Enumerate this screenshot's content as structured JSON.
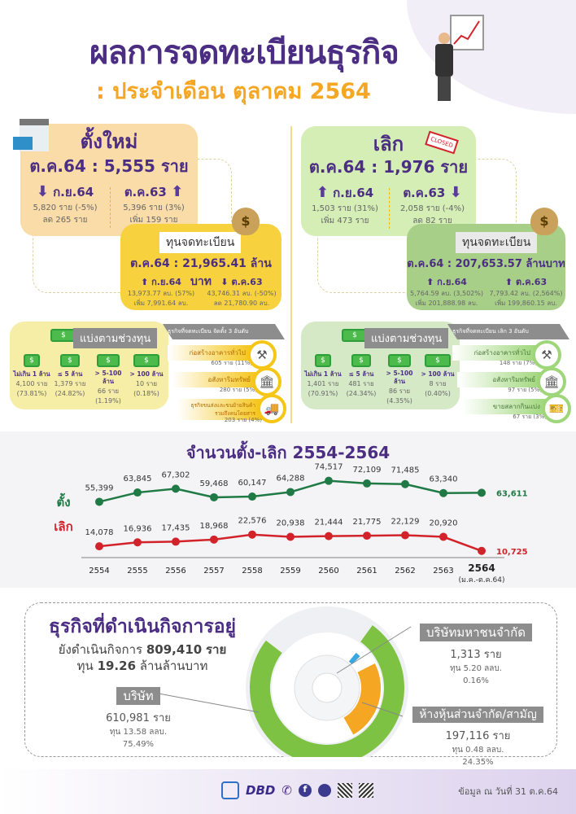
{
  "header": {
    "title": "ผลการจดทะเบียนธุรกิจ",
    "subtitle": ": ประจำเดือน ตุลาคม 2564"
  },
  "new": {
    "heading": "ตั้งใหม่",
    "main": "ต.ค.64 : 5,555 ราย",
    "prev_month": {
      "label": "ก.ย.64",
      "line1": "5,820 ราย (-5%)",
      "line2": "ลด 265 ราย",
      "direction": "down"
    },
    "prev_year": {
      "label": "ต.ค.63",
      "line1": "5,396 ราย (3%)",
      "line2": "เพิ่ม 159 ราย",
      "direction": "up"
    },
    "capital": {
      "tag": "ทุนจดทะเบียน",
      "main": "ต.ค.64 : 21,965.41 ล้านบาท",
      "prev_month": {
        "label": "ก.ย.64",
        "line1": "13,973.77 ลบ. (57%)",
        "line2": "เพิ่ม 7,991.64 ลบ.",
        "direction": "up"
      },
      "prev_year": {
        "label": "ต.ค.63",
        "line1": "43,746.31 ลบ. (-50%)",
        "line2": "ลด 21,780.90 ลบ.",
        "direction": "down"
      }
    },
    "ranges": {
      "heading": "แบ่งตามช่วงทุน",
      "items": [
        {
          "label": "ไม่เกิน 1 ล้าน",
          "count": "4,100 ราย",
          "pct": "(73.81%)"
        },
        {
          "label": "≤ 5 ล้าน",
          "count": "1,379 ราย",
          "pct": "(24.82%)"
        },
        {
          "label": "> 5-100 ล้าน",
          "count": "66 ราย",
          "pct": "(1.19%)"
        },
        {
          "label": "> 100 ล้าน",
          "count": "10 ราย",
          "pct": "(0.18%)"
        }
      ]
    },
    "top3": {
      "heading": "ธุรกิจที่จดทะเบียน จัดตั้ง 3 อันดับ",
      "items": [
        {
          "label": "ก่อสร้างอาคารทั่วไป",
          "value": "605 ราย (11%)",
          "icon": "construction-icon"
        },
        {
          "label": "อสังหาริมทรัพย์",
          "value": "280 ราย (5%)",
          "icon": "bank-icon"
        },
        {
          "label": "ธุรกิจขนส่งและขนย้ายสินค้ารวมถึงคนโดยสาร",
          "value": "203 ราย (4%)",
          "icon": "truck-icon"
        }
      ]
    }
  },
  "closed": {
    "heading": "เลิก",
    "main": "ต.ค.64 : 1,976 ราย",
    "prev_month": {
      "label": "ก.ย.64",
      "line1": "1,503 ราย (31%)",
      "line2": "เพิ่ม 473 ราย",
      "direction": "up"
    },
    "prev_year": {
      "label": "ต.ค.63",
      "line1": "2,058 ราย (-4%)",
      "line2": "ลด 82 ราย",
      "direction": "down"
    },
    "capital": {
      "tag": "ทุนจดทะเบียน",
      "main": "ต.ค.64 : 207,653.57 ล้านบาท",
      "prev_month": {
        "label": "ก.ย.64",
        "line1": "5,764.59 ลบ. (3,502%)",
        "line2": "เพิ่ม 201,888.98 ลบ.",
        "direction": "up"
      },
      "prev_year": {
        "label": "ต.ค.63",
        "line1": "7,793.42 ลบ. (2,564%)",
        "line2": "เพิ่ม 199,860.15 ลบ.",
        "direction": "up"
      }
    },
    "ranges": {
      "heading": "แบ่งตามช่วงทุน",
      "items": [
        {
          "label": "ไม่เกิน 1 ล้าน",
          "count": "1,401 ราย",
          "pct": "(70.91%)"
        },
        {
          "label": "≤ 5 ล้าน",
          "count": "481 ราย",
          "pct": "(24.34%)"
        },
        {
          "label": "> 5-100 ล้าน",
          "count": "86 ราย",
          "pct": "(4.35%)"
        },
        {
          "label": "> 100 ล้าน",
          "count": "8 ราย",
          "pct": "(0.40%)"
        }
      ]
    },
    "top3": {
      "heading": "ธุรกิจที่จดทะเบียน เลิก 3 อันดับ",
      "items": [
        {
          "label": "ก่อสร้างอาคารทั่วไป",
          "value": "148 ราย (7%)",
          "icon": "construction-icon"
        },
        {
          "label": "อสังหาริมทรัพย์",
          "value": "97 ราย (5%)",
          "icon": "bank-icon"
        },
        {
          "label": "ขายสลากกินแบ่ง",
          "value": "67 ราย (3%)",
          "icon": "lottery-icon"
        }
      ]
    }
  },
  "chart_data": {
    "type": "line",
    "title": "จำนวนตั้ง-เลิก 2554-2564",
    "categories": [
      "2554",
      "2555",
      "2556",
      "2557",
      "2558",
      "2559",
      "2560",
      "2561",
      "2562",
      "2563",
      "2564"
    ],
    "last_category_note": "(ม.ค.-ต.ค.64)",
    "series": [
      {
        "name": "ตั้ง",
        "color": "#1f7a45",
        "values": [
          55399,
          63845,
          67302,
          59468,
          60147,
          64288,
          74517,
          72109,
          71485,
          63340,
          63611
        ],
        "labels": [
          "55,399",
          "63,845",
          "67,302",
          "59,468",
          "60,147",
          "64,288",
          "74,517",
          "72,109",
          "71,485",
          "63,340",
          "63,611"
        ]
      },
      {
        "name": "เลิก",
        "color": "#d2232a",
        "values": [
          14078,
          16936,
          17435,
          18968,
          22576,
          20938,
          21444,
          21775,
          22129,
          20920,
          10725
        ],
        "labels": [
          "14,078",
          "16,936",
          "17,435",
          "18,968",
          "22,576",
          "20,938",
          "21,444",
          "21,775",
          "22,129",
          "20,920",
          "10,725"
        ]
      }
    ]
  },
  "active": {
    "heading": "ธุรกิจที่ดำเนินกิจการอยู่",
    "line1_pre": "ยังดำเนินกิจการ",
    "line1_val": "809,410",
    "line1_post": "ราย",
    "line2_pre": "ทุน",
    "line2_val": "19.26",
    "line2_post": "ล้านล้านบาท",
    "types": [
      {
        "name": "บริษัท",
        "count": "610,981 ราย",
        "capital": "ทุน 13.58 ลลบ.",
        "pct": "75.49%",
        "share": 75.49,
        "color": "#7dc242"
      },
      {
        "name": "บริษัทมหาชนจำกัด",
        "count": "1,313 ราย",
        "capital": "ทุน 5.20 ลลบ.",
        "pct": "0.16%",
        "share": 0.16,
        "color": "#3aa8e0"
      },
      {
        "name": "ห้างหุ้นส่วนจำกัด/สามัญ",
        "count": "197,116 ราย",
        "capital": "ทุน 0.48 ลลบ.",
        "pct": "24.35%",
        "share": 24.35,
        "color": "#f5a623"
      }
    ]
  },
  "footer": {
    "date": "ข้อมูล ณ วันที่ 31 ต.ค.64",
    "logo_text": "DBD"
  }
}
